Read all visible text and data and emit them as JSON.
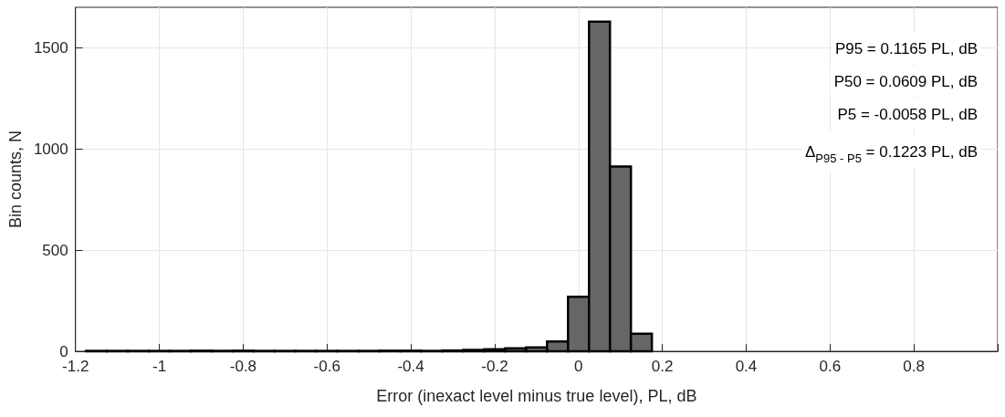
{
  "chart_data": {
    "type": "histogram",
    "xlabel": "Error (inexact level minus true level), PL, dB",
    "ylabel": "Bin counts, N",
    "bins": [
      -1.175,
      -1.125,
      -1.075,
      -1.025,
      -0.975,
      -0.925,
      -0.875,
      -0.825,
      -0.775,
      -0.725,
      -0.675,
      -0.625,
      -0.575,
      -0.525,
      -0.475,
      -0.425,
      -0.375,
      -0.325,
      -0.275,
      -0.225,
      -0.175,
      -0.125,
      -0.075,
      -0.025,
      0.025,
      0.075,
      0.125,
      0.175
    ],
    "values": [
      2,
      2,
      2,
      2,
      2,
      3,
      2,
      3,
      2,
      2,
      2,
      2,
      2,
      2,
      3,
      3,
      2,
      4,
      7,
      10,
      15,
      19,
      48,
      269,
      1629,
      913,
      87
    ],
    "color": "#666666",
    "xlim": [
      -1.2,
      1.0
    ],
    "xticks": [
      -1.2,
      -1,
      -0.8,
      -0.6,
      -0.4,
      -0.2,
      0,
      0.2,
      0.4,
      0.6,
      0.8,
      {
        "value": 1,
        "label": null
      }
    ],
    "ylim": [
      0,
      1700
    ],
    "yticks": [
      0,
      500,
      1000,
      1500
    ],
    "grid": true,
    "annotations": [
      "P95 = 0.1165 PL, dB",
      "P50 = 0.0609 PL, dB",
      "P5 = -0.0058 PL, dB",
      "Δ$_{P95 - P5}$ = 0.1223 PL, dB"
    ]
  }
}
